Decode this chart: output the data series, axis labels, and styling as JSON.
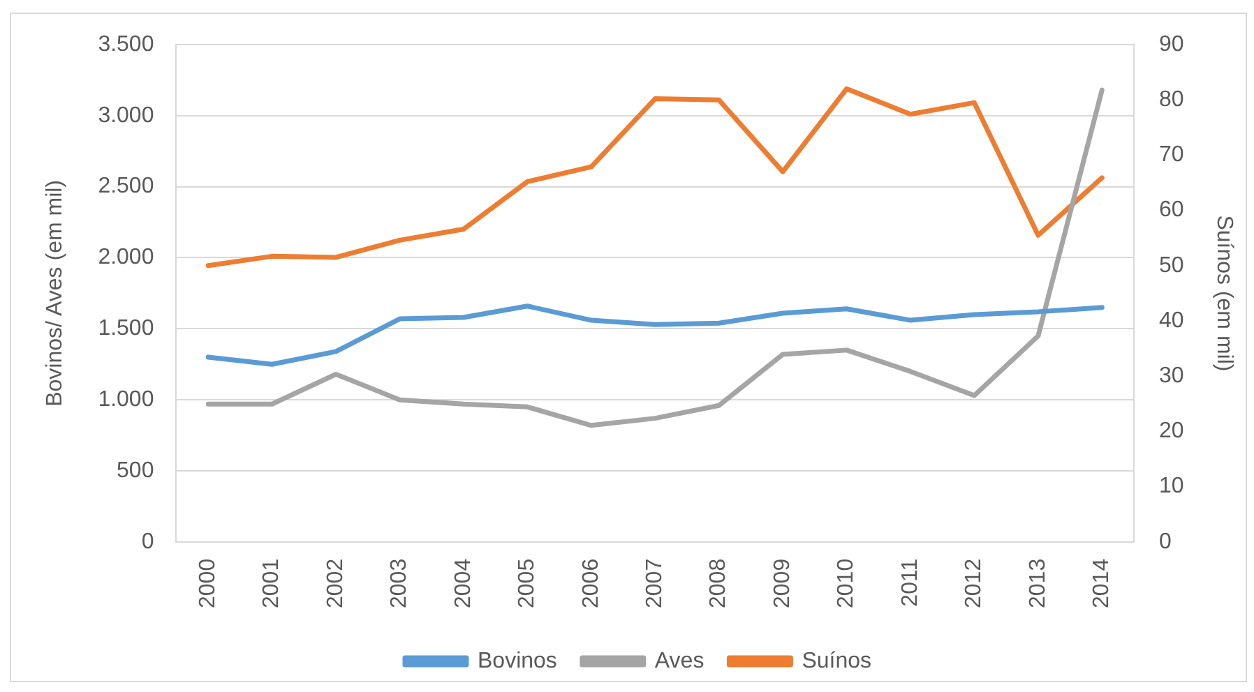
{
  "chart_data": {
    "type": "line",
    "categories": [
      "2000",
      "2001",
      "2002",
      "2003",
      "2004",
      "2005",
      "2006",
      "2007",
      "2008",
      "2009",
      "2010",
      "2011",
      "2012",
      "2013",
      "2014"
    ],
    "ylabel": "Bovinos/ Aves (em mil)",
    "y2label": "Suínos (em mil)",
    "ylim": [
      0,
      3500
    ],
    "yticks": [
      {
        "value": 0,
        "label": "0"
      },
      {
        "value": 500,
        "label": "500"
      },
      {
        "value": 1000,
        "label": "1.000"
      },
      {
        "value": 1500,
        "label": "1.500"
      },
      {
        "value": 2000,
        "label": "2.000"
      },
      {
        "value": 2500,
        "label": "2.500"
      },
      {
        "value": 3000,
        "label": "3.000"
      },
      {
        "value": 3500,
        "label": "3.500"
      }
    ],
    "y2lim": [
      0,
      90
    ],
    "y2ticks": [
      0,
      10,
      20,
      30,
      40,
      50,
      60,
      70,
      80,
      90
    ],
    "grid": "y",
    "legend": "bottom",
    "marker": "none",
    "line_style": "solid",
    "series": [
      {
        "name": "Bovinos",
        "color": "#5b9bd5",
        "values": [
          1300,
          1250,
          1340,
          1570,
          1580,
          1660,
          1560,
          1530,
          1540,
          1610,
          1640,
          1560,
          1600,
          1620,
          1650
        ]
      },
      {
        "name": "Aves",
        "color": "#a5a5a5",
        "values": [
          970,
          970,
          1180,
          1000,
          970,
          950,
          820,
          870,
          960,
          1320,
          1350,
          1200,
          1030,
          1450,
          3180
        ]
      },
      {
        "name": "Suínos",
        "color": "#ed7d31",
        "axis": "y2",
        "values": [
          50,
          51.7,
          51.5,
          54.6,
          56.6,
          65.2,
          67.9,
          80.2,
          80,
          67,
          82,
          77.4,
          79.5,
          55.5,
          65.9
        ]
      }
    ]
  }
}
